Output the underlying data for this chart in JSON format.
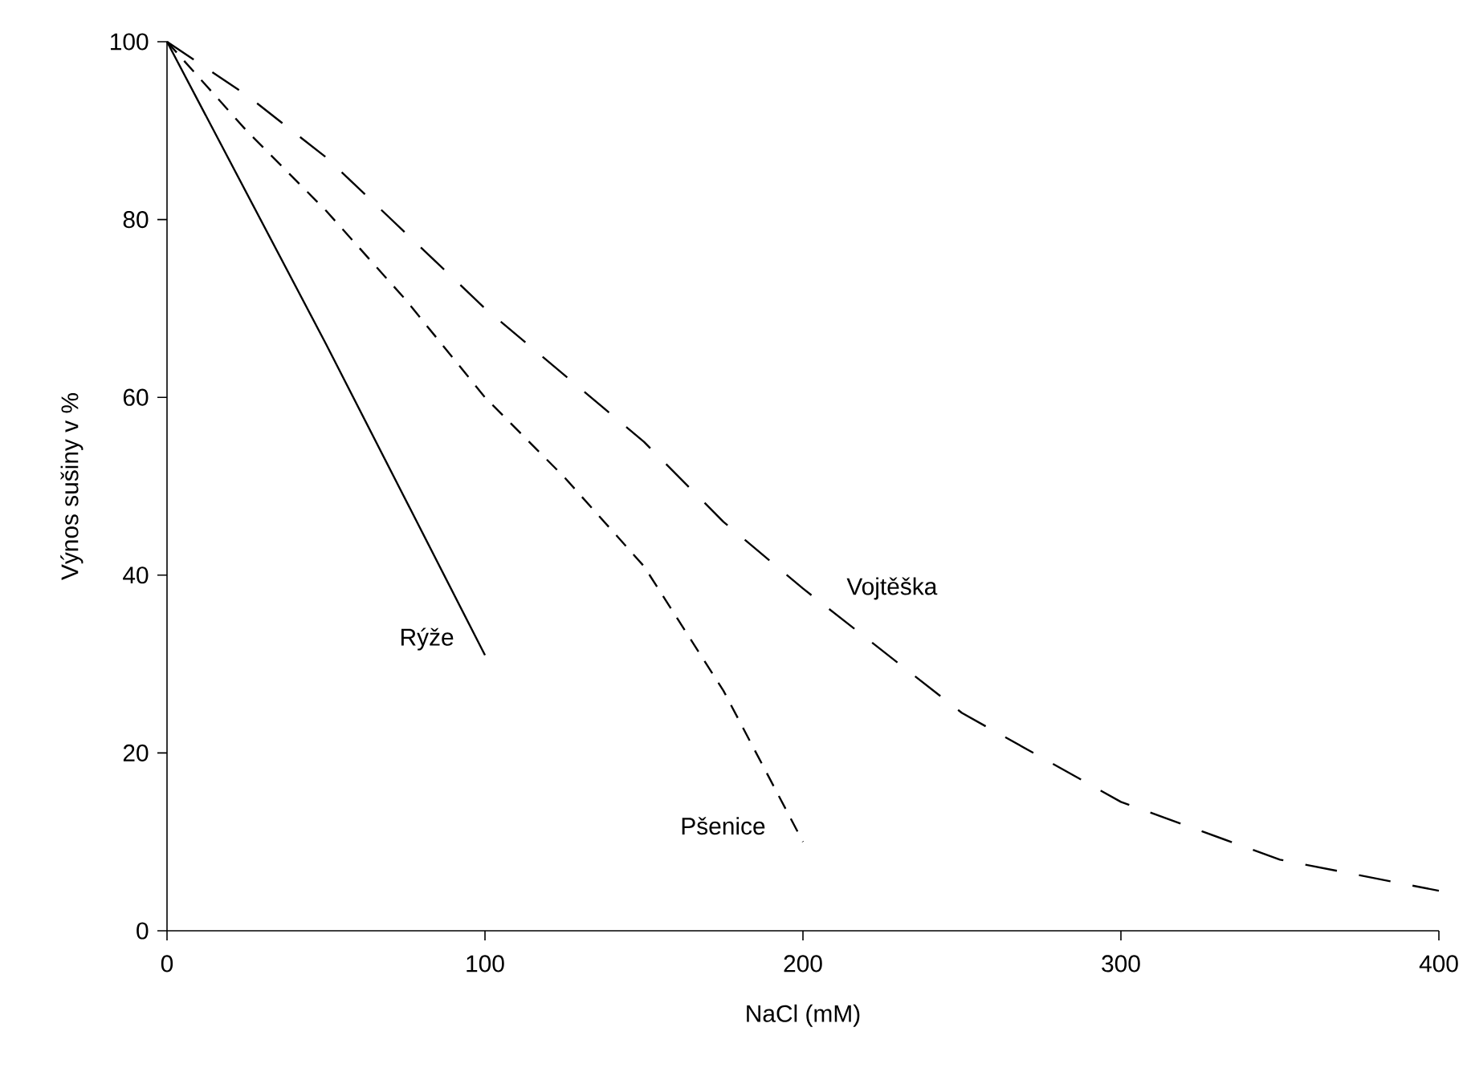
{
  "chart_data": {
    "type": "line",
    "xlabel": "NaCl (mM)",
    "ylabel": "Výnos sušiny v %",
    "xlim": [
      0,
      400
    ],
    "ylim": [
      0,
      100
    ],
    "xticks": [
      0,
      100,
      200,
      300,
      400
    ],
    "yticks": [
      0,
      20,
      40,
      60,
      80,
      100
    ],
    "grid": false,
    "legend": false,
    "marker": "none",
    "series": [
      {
        "name": "Rýže",
        "color": "#000000",
        "line_style": "solid",
        "x": [
          0,
          50,
          100
        ],
        "values": [
          100,
          66,
          31
        ]
      },
      {
        "name": "Pšenice",
        "color": "#000000",
        "line_style": "dashed",
        "x": [
          0,
          25,
          50,
          75,
          100,
          125,
          150,
          175,
          200
        ],
        "values": [
          100,
          90,
          81,
          71,
          60,
          51,
          41,
          27,
          10
        ]
      },
      {
        "name": "Vojtěška",
        "color": "#000000",
        "line_style": "dashed",
        "x": [
          0,
          25,
          50,
          100,
          125,
          150,
          175,
          200,
          250,
          300,
          350,
          400
        ],
        "values": [
          100,
          94,
          87,
          70,
          62.5,
          55,
          46,
          38.5,
          24.5,
          14.5,
          8,
          4.5
        ]
      }
    ]
  }
}
